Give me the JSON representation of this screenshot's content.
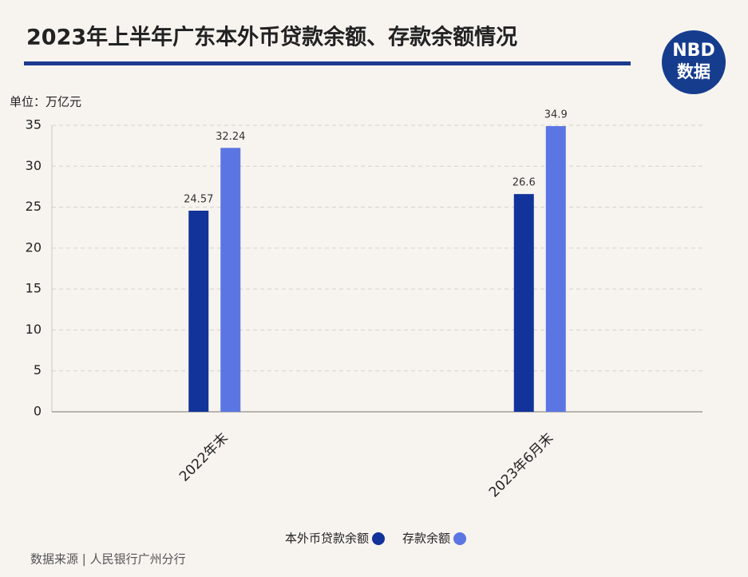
{
  "chart_data": {
    "type": "bar",
    "title": "2023年上半年广东本外币贷款余额、存款余额情况",
    "unit_label": "单位：万亿元",
    "categories": [
      "2022年末",
      "2023年6月末"
    ],
    "series": [
      {
        "name": "本外币贷款余额",
        "color": "#12339a",
        "values": [
          24.57,
          26.6
        ]
      },
      {
        "name": "存款余额",
        "color": "#5b76e3",
        "values": [
          32.24,
          34.9
        ]
      }
    ],
    "ylim": [
      0,
      35
    ],
    "yticks": [
      0,
      5,
      10,
      15,
      20,
      25,
      30,
      35
    ],
    "grid": true,
    "source": "数据来源 | 人民银行广州分行"
  },
  "logo": {
    "top": "NBD",
    "bottom": "数据"
  }
}
